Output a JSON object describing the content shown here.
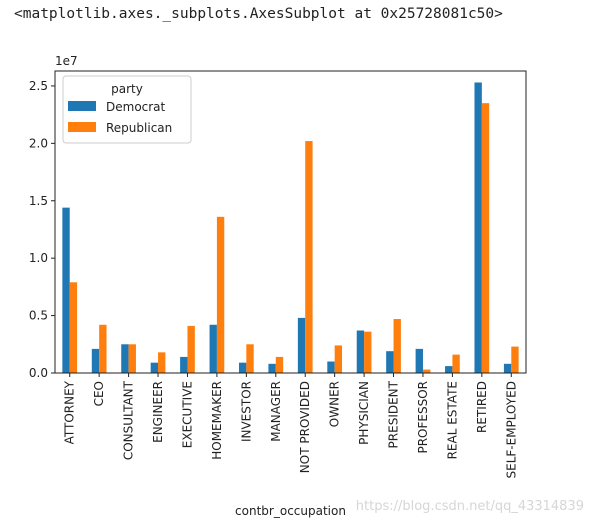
{
  "output_repr": "<matplotlib.axes._subplots.AxesSubplot at 0x25728081c50>",
  "watermark": "https://blog.csdn.net/qq_43314839",
  "chart_data": {
    "type": "bar",
    "categories": [
      "ATTORNEY",
      "CEO",
      "CONSULTANT",
      "ENGINEER",
      "EXECUTIVE",
      "HOMEMAKER",
      "INVESTOR",
      "MANAGER",
      "NOT PROVIDED",
      "OWNER",
      "PHYSICIAN",
      "PRESIDENT",
      "PROFESSOR",
      "REAL ESTATE",
      "RETIRED",
      "SELF-EMPLOYED"
    ],
    "series": [
      {
        "name": "Democrat",
        "color": "#1f77b4",
        "values": [
          14400000,
          2100000,
          2500000,
          900000,
          1400000,
          4200000,
          900000,
          800000,
          4800000,
          1000000,
          3700000,
          1900000,
          2100000,
          600000,
          25300000,
          800000
        ]
      },
      {
        "name": "Republican",
        "color": "#ff7f0e",
        "values": [
          7900000,
          4200000,
          2500000,
          1800000,
          4100000,
          13600000,
          2500000,
          1400000,
          20200000,
          2400000,
          3600000,
          4700000,
          300000,
          1600000,
          23500000,
          2300000
        ]
      }
    ],
    "xlabel": "contbr_occupation",
    "ylabel": "",
    "ylim": [
      0,
      26300000
    ],
    "yticks": [
      0,
      5000000,
      10000000,
      15000000,
      20000000,
      25000000
    ],
    "ytick_labels": [
      "0.0",
      "0.5",
      "1.0",
      "1.5",
      "2.0",
      "2.5"
    ],
    "offset_label": "1e7",
    "legend_title": "party",
    "legend_position": "top-left",
    "grid": false
  }
}
